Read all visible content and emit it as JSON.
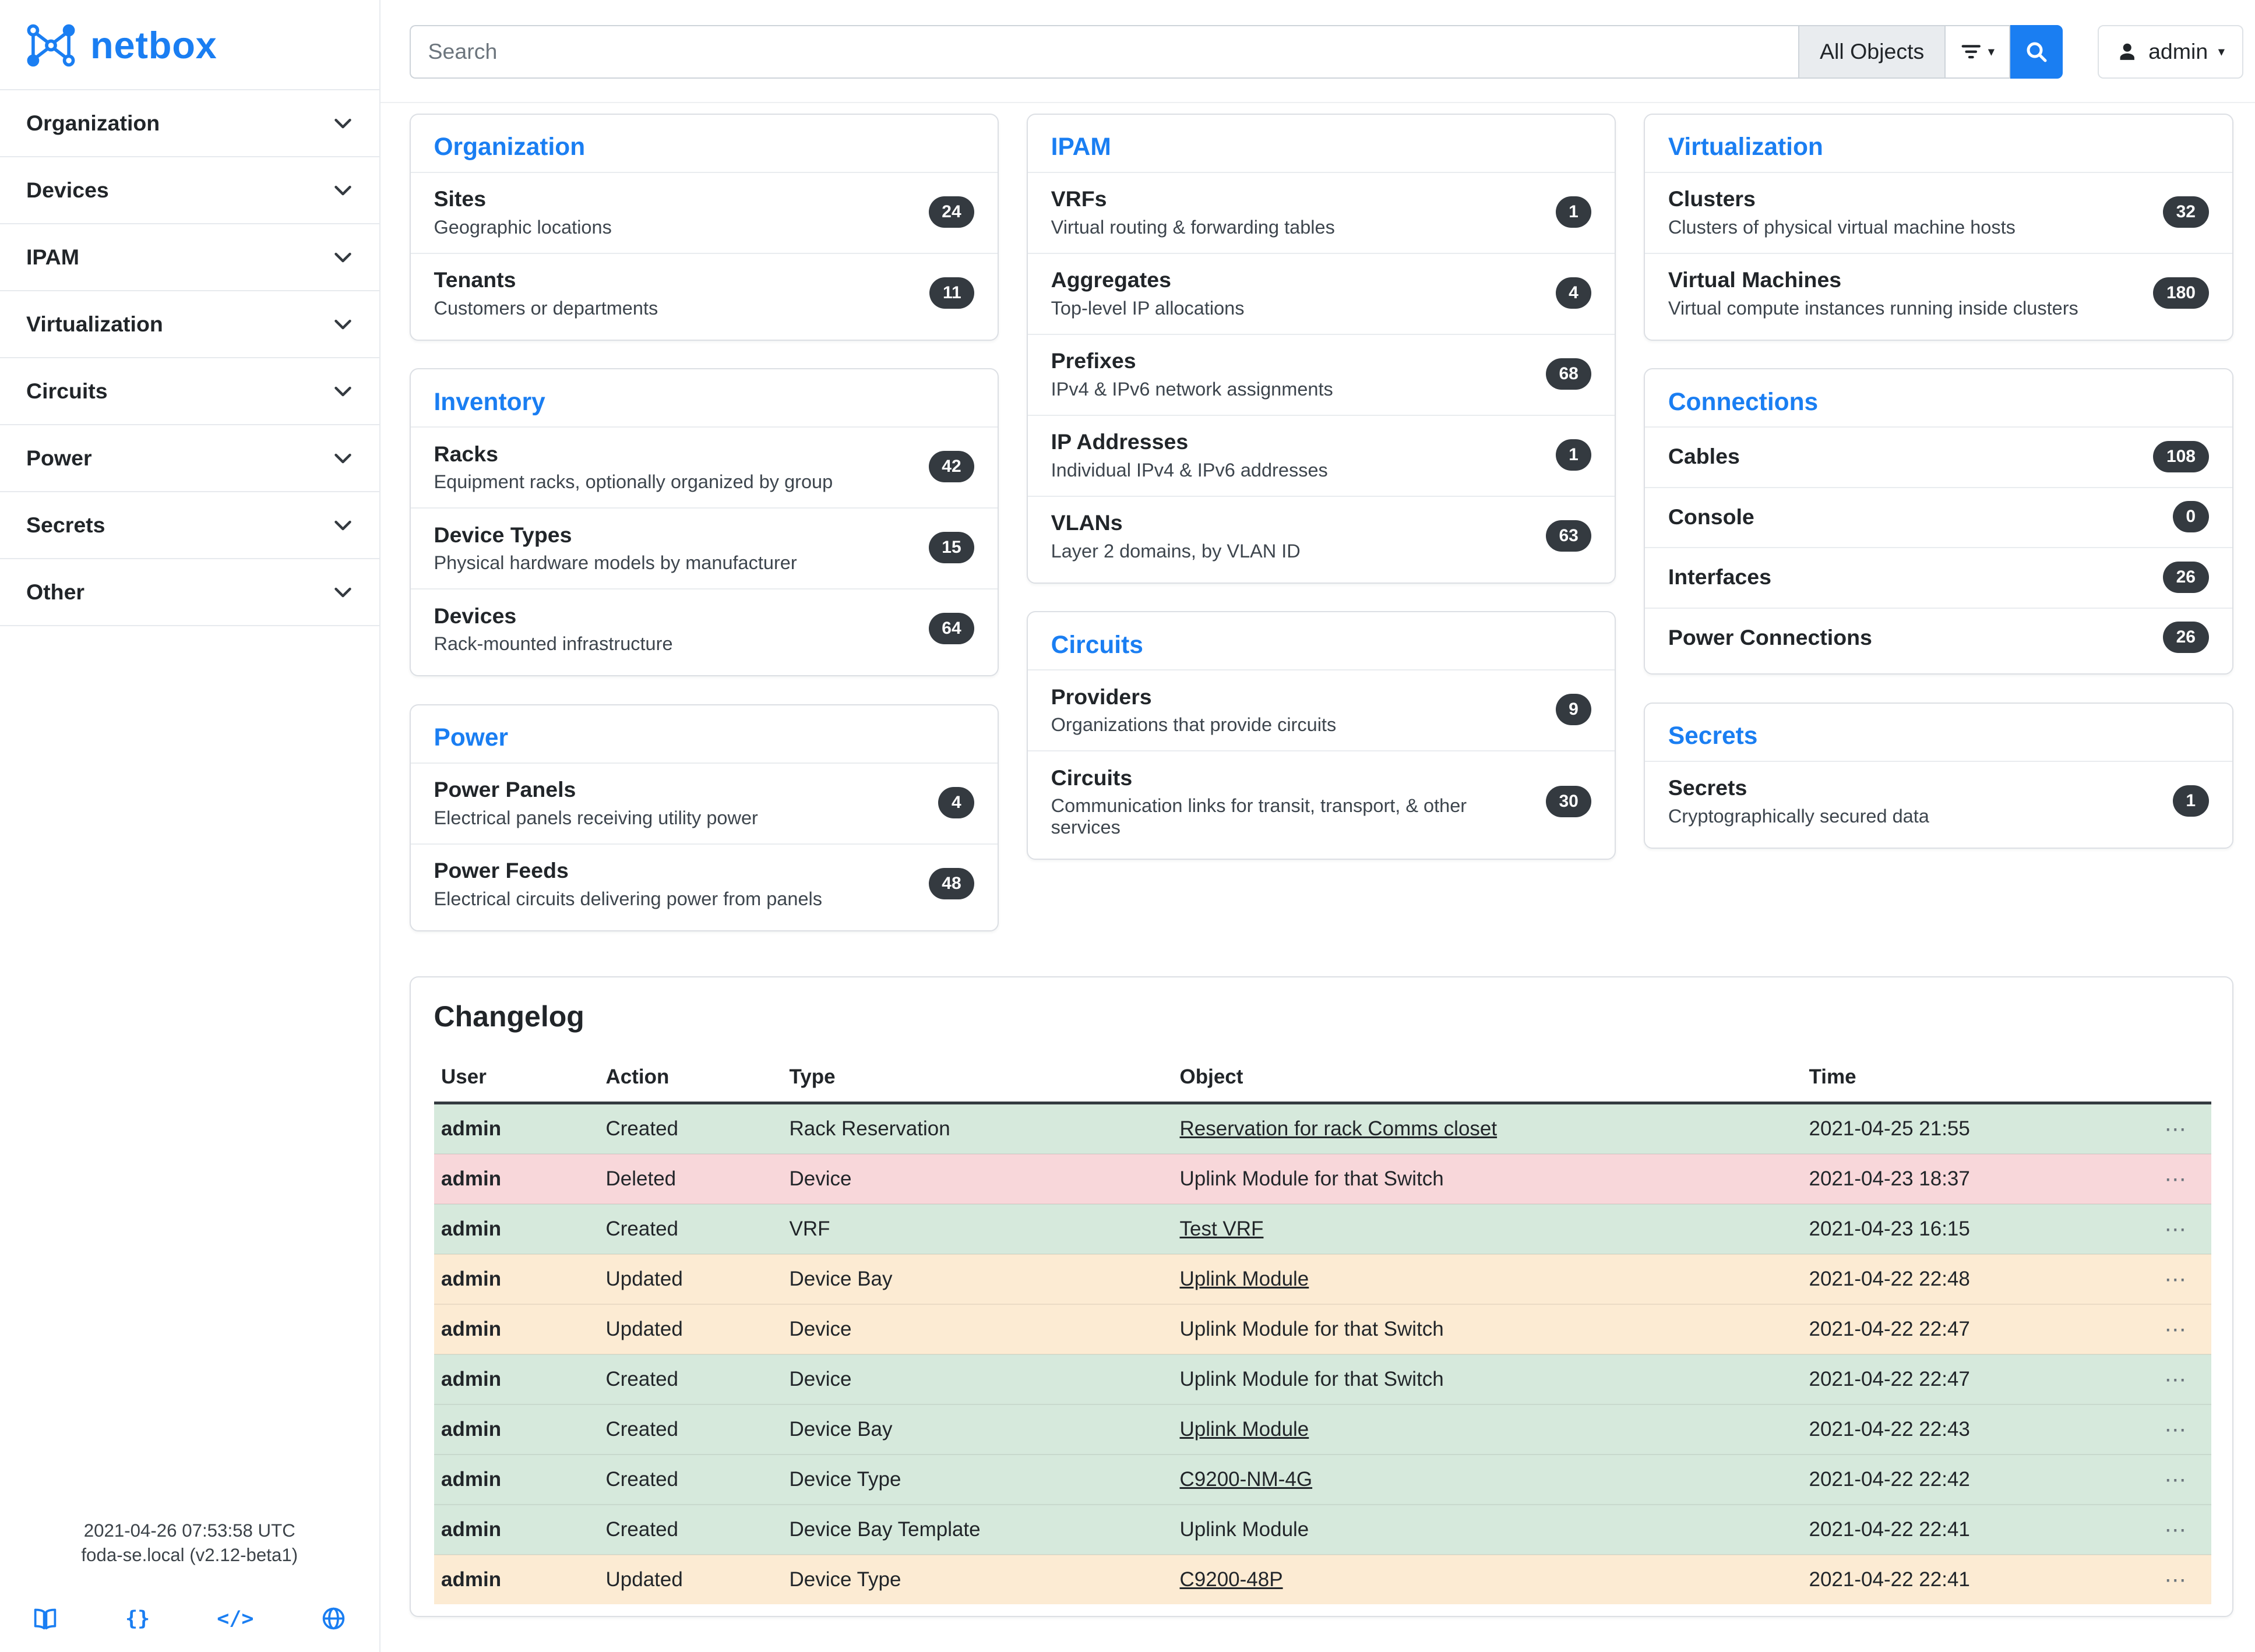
{
  "brand": {
    "name": "netbox"
  },
  "colors": {
    "accent": "#1a7ef2",
    "badge": "#343a40",
    "row_success": "#d6e9dc",
    "row_danger": "#f8d7da",
    "row_warning": "#fcebd3"
  },
  "icons": {
    "braces": "{}",
    "code": "</>",
    "caret": "▾",
    "ellipsis": "⋯"
  },
  "topbar": {
    "search_placeholder": "Search",
    "scope_label": "All Objects",
    "user_label": "admin"
  },
  "sidebar": {
    "items": [
      "Organization",
      "Devices",
      "IPAM",
      "Virtualization",
      "Circuits",
      "Power",
      "Secrets",
      "Other"
    ],
    "footer_time": "2021-04-26 07:53:58 UTC",
    "footer_host": "foda-se.local (v2.12-beta1)"
  },
  "dashboard": {
    "columns": [
      [
        {
          "title": "Organization",
          "items": [
            {
              "name": "Sites",
              "desc": "Geographic locations",
              "count": "24"
            },
            {
              "name": "Tenants",
              "desc": "Customers or departments",
              "count": "11"
            }
          ]
        },
        {
          "title": "Inventory",
          "items": [
            {
              "name": "Racks",
              "desc": "Equipment racks, optionally organized by group",
              "count": "42"
            },
            {
              "name": "Device Types",
              "desc": "Physical hardware models by manufacturer",
              "count": "15"
            },
            {
              "name": "Devices",
              "desc": "Rack-mounted infrastructure",
              "count": "64"
            }
          ]
        },
        {
          "title": "Power",
          "items": [
            {
              "name": "Power Panels",
              "desc": "Electrical panels receiving utility power",
              "count": "4"
            },
            {
              "name": "Power Feeds",
              "desc": "Electrical circuits delivering power from panels",
              "count": "48"
            }
          ]
        }
      ],
      [
        {
          "title": "IPAM",
          "items": [
            {
              "name": "VRFs",
              "desc": "Virtual routing & forwarding tables",
              "count": "1"
            },
            {
              "name": "Aggregates",
              "desc": "Top-level IP allocations",
              "count": "4"
            },
            {
              "name": "Prefixes",
              "desc": "IPv4 & IPv6 network assignments",
              "count": "68"
            },
            {
              "name": "IP Addresses",
              "desc": "Individual IPv4 & IPv6 addresses",
              "count": "1"
            },
            {
              "name": "VLANs",
              "desc": "Layer 2 domains, by VLAN ID",
              "count": "63"
            }
          ]
        },
        {
          "title": "Circuits",
          "items": [
            {
              "name": "Providers",
              "desc": "Organizations that provide circuits",
              "count": "9"
            },
            {
              "name": "Circuits",
              "desc": "Communication links for transit, transport, & other services",
              "count": "30"
            }
          ]
        }
      ],
      [
        {
          "title": "Virtualization",
          "items": [
            {
              "name": "Clusters",
              "desc": "Clusters of physical virtual machine hosts",
              "count": "32"
            },
            {
              "name": "Virtual Machines",
              "desc": "Virtual compute instances running inside clusters",
              "count": "180"
            }
          ]
        },
        {
          "title": "Connections",
          "items": [
            {
              "name": "Cables",
              "desc": "",
              "count": "108"
            },
            {
              "name": "Console",
              "desc": "",
              "count": "0"
            },
            {
              "name": "Interfaces",
              "desc": "",
              "count": "26"
            },
            {
              "name": "Power Connections",
              "desc": "",
              "count": "26"
            }
          ]
        },
        {
          "title": "Secrets",
          "items": [
            {
              "name": "Secrets",
              "desc": "Cryptographically secured data",
              "count": "1"
            }
          ]
        }
      ]
    ]
  },
  "changelog": {
    "title": "Changelog",
    "columns": [
      "User",
      "Action",
      "Type",
      "Object",
      "Time"
    ],
    "rows": [
      {
        "user": "admin",
        "action": "Created",
        "type": "Rack Reservation",
        "object": "Reservation for rack Comms closet",
        "link": true,
        "time": "2021-04-25 21:55",
        "tone": "success"
      },
      {
        "user": "admin",
        "action": "Deleted",
        "type": "Device",
        "object": "Uplink Module for that Switch",
        "link": false,
        "time": "2021-04-23 18:37",
        "tone": "danger"
      },
      {
        "user": "admin",
        "action": "Created",
        "type": "VRF",
        "object": "Test VRF",
        "link": true,
        "time": "2021-04-23 16:15",
        "tone": "success"
      },
      {
        "user": "admin",
        "action": "Updated",
        "type": "Device Bay",
        "object": "Uplink Module",
        "link": true,
        "time": "2021-04-22 22:48",
        "tone": "warning"
      },
      {
        "user": "admin",
        "action": "Updated",
        "type": "Device",
        "object": "Uplink Module for that Switch",
        "link": false,
        "time": "2021-04-22 22:47",
        "tone": "warning"
      },
      {
        "user": "admin",
        "action": "Created",
        "type": "Device",
        "object": "Uplink Module for that Switch",
        "link": false,
        "time": "2021-04-22 22:47",
        "tone": "success"
      },
      {
        "user": "admin",
        "action": "Created",
        "type": "Device Bay",
        "object": "Uplink Module",
        "link": true,
        "time": "2021-04-22 22:43",
        "tone": "success"
      },
      {
        "user": "admin",
        "action": "Created",
        "type": "Device Type",
        "object": "C9200-NM-4G",
        "link": true,
        "time": "2021-04-22 22:42",
        "tone": "success"
      },
      {
        "user": "admin",
        "action": "Created",
        "type": "Device Bay Template",
        "object": "Uplink Module",
        "link": false,
        "time": "2021-04-22 22:41",
        "tone": "success"
      },
      {
        "user": "admin",
        "action": "Updated",
        "type": "Device Type",
        "object": "C9200-48P",
        "link": true,
        "time": "2021-04-22 22:41",
        "tone": "warning"
      }
    ]
  }
}
